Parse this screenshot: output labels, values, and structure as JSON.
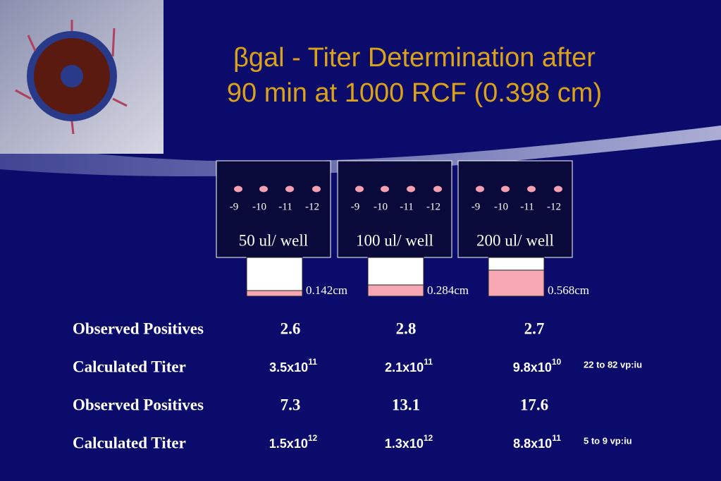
{
  "title": {
    "line1": "βgal - Titer Determination after",
    "line2": "90 min at 1000 RCF (0.398 cm)"
  },
  "panels": [
    {
      "dilutions": [
        "-9",
        "-10",
        "-11",
        "-12"
      ],
      "volume": "50 ul/ well",
      "depth": "0.142cm"
    },
    {
      "dilutions": [
        "-9",
        "-10",
        "-11",
        "-12"
      ],
      "volume": "100 ul/ well",
      "depth": "0.284cm"
    },
    {
      "dilutions": [
        "-9",
        "-10",
        "-11",
        "-12"
      ],
      "volume": "200 ul/ well",
      "depth": "0.568cm"
    }
  ],
  "table": {
    "rows": [
      {
        "label": "Observed Positives",
        "values": [
          "2.6",
          "2.8",
          "2.7"
        ]
      },
      {
        "label": "Calculated Titer",
        "values": [
          {
            "base": "3.5x10",
            "exp": "11"
          },
          {
            "base": "2.1x10",
            "exp": "11"
          },
          {
            "base": "9.8x10",
            "exp": "10"
          }
        ],
        "note": "22 to 82 vp:iu"
      },
      {
        "label": "Observed Positives",
        "values": [
          "7.3",
          "13.1",
          "17.6"
        ]
      },
      {
        "label": "Calculated Titer",
        "values": [
          {
            "base": "1.5x10",
            "exp": "12"
          },
          {
            "base": "1.3x10",
            "exp": "12"
          },
          {
            "base": "8.8x10",
            "exp": "11"
          }
        ],
        "note": "5 to 9 vp:iu"
      }
    ]
  }
}
